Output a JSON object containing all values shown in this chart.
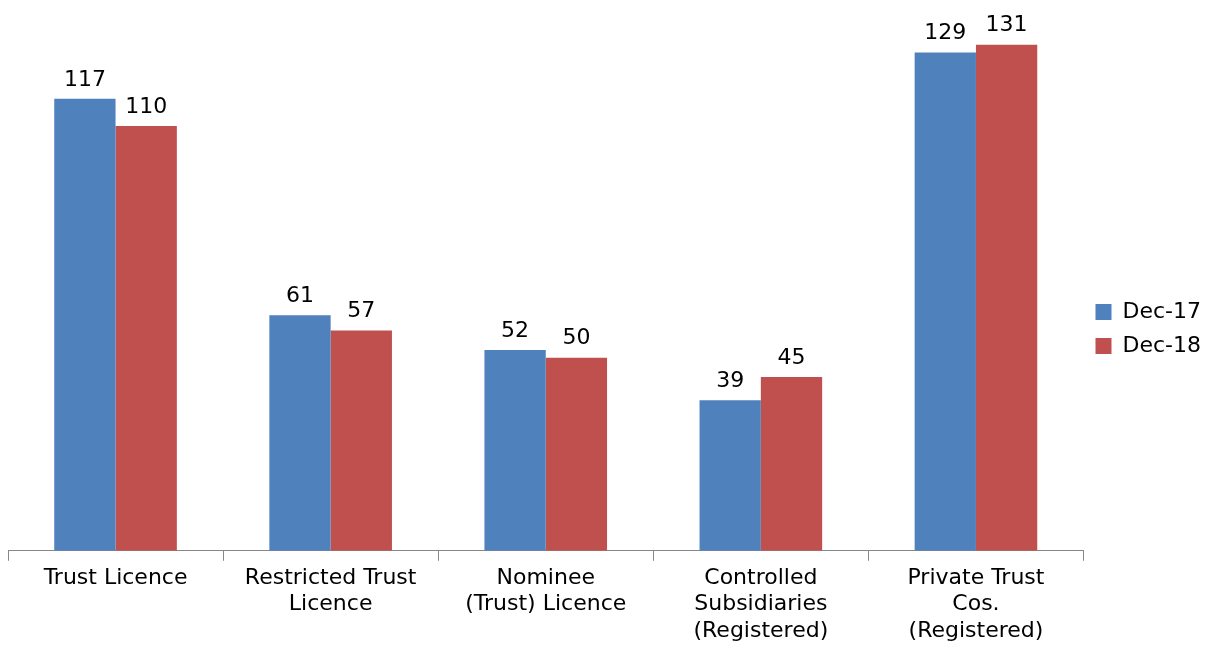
{
  "chart_data": {
    "type": "bar",
    "categories": [
      "Trust Licence",
      "Restricted Trust\nLicence",
      "Nominee\n(Trust) Licence",
      "Controlled\nSubsidiaries\n(Registered)",
      "Private Trust\nCos.\n(Registered)"
    ],
    "series": [
      {
        "name": "Dec-17",
        "color": "#4f81bd",
        "values": [
          117,
          61,
          52,
          39,
          129
        ]
      },
      {
        "name": "Dec-18",
        "color": "#c0504d",
        "values": [
          110,
          57,
          50,
          45,
          131
        ]
      }
    ],
    "data_labels": true,
    "legend": "right",
    "grid": false
  }
}
